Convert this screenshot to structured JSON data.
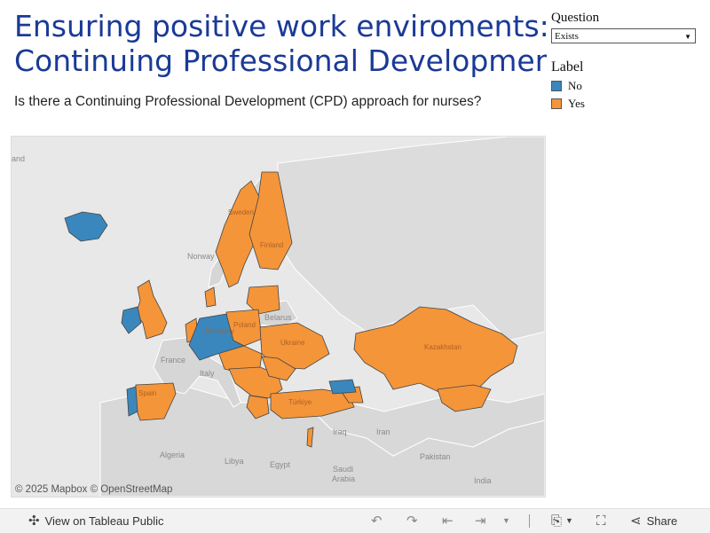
{
  "header": {
    "title_line1": "Ensuring positive work enviroments:",
    "title_line2": "Continuing Professional Development",
    "subtitle": "Is there a Continuing Professional Development (CPD) approach for nurses?"
  },
  "filter": {
    "label": "Question",
    "selected": "Exists"
  },
  "legend": {
    "title": "Label",
    "items": [
      {
        "label": "No",
        "color": "#3a87bd"
      },
      {
        "label": "Yes",
        "color": "#f4953a"
      }
    ]
  },
  "map": {
    "attribution_mapbox": "© 2025 Mapbox",
    "attribution_osm": "© OpenStreetMap",
    "place_labels": {
      "land": "and",
      "norway": "Norway",
      "belarus": "Belarus",
      "france": "France",
      "italy": "Italy",
      "iraq": "Iraq",
      "iran": "Iran",
      "algeria": "Algeria",
      "libya": "Libya",
      "egypt": "Egypt",
      "saudi": "Saudi",
      "arabia": "Arabia",
      "pakistan": "Pakistan",
      "india": "India",
      "sweden": "Sweden",
      "finland": "Finland",
      "poland": "Poland",
      "germany": "Germany",
      "ukraine": "Ukraine",
      "turkiye": "Türkiye",
      "spain": "Spain",
      "kazakhstan": "Kazakhstan"
    },
    "countries_no": [
      "Iceland",
      "Ireland",
      "Germany",
      "Czechia",
      "Portugal",
      "Georgia"
    ],
    "countries_yes": [
      "United Kingdom",
      "Sweden",
      "Finland",
      "Estonia",
      "Latvia",
      "Lithuania",
      "Poland",
      "Denmark",
      "Netherlands",
      "Belgium",
      "Austria",
      "Slovakia",
      "Hungary",
      "Slovenia",
      "Croatia",
      "Romania",
      "Moldova",
      "Bulgaria",
      "Serbia",
      "Greece",
      "Ukraine",
      "Spain",
      "Türkiye",
      "Kazakhstan",
      "Uzbekistan",
      "Kyrgyzstan",
      "Tajikistan",
      "Armenia",
      "Azerbaijan",
      "Israel",
      "Cyprus",
      "Malta"
    ]
  },
  "toolbar": {
    "view_label": "View on Tableau Public",
    "share_label": "Share"
  }
}
